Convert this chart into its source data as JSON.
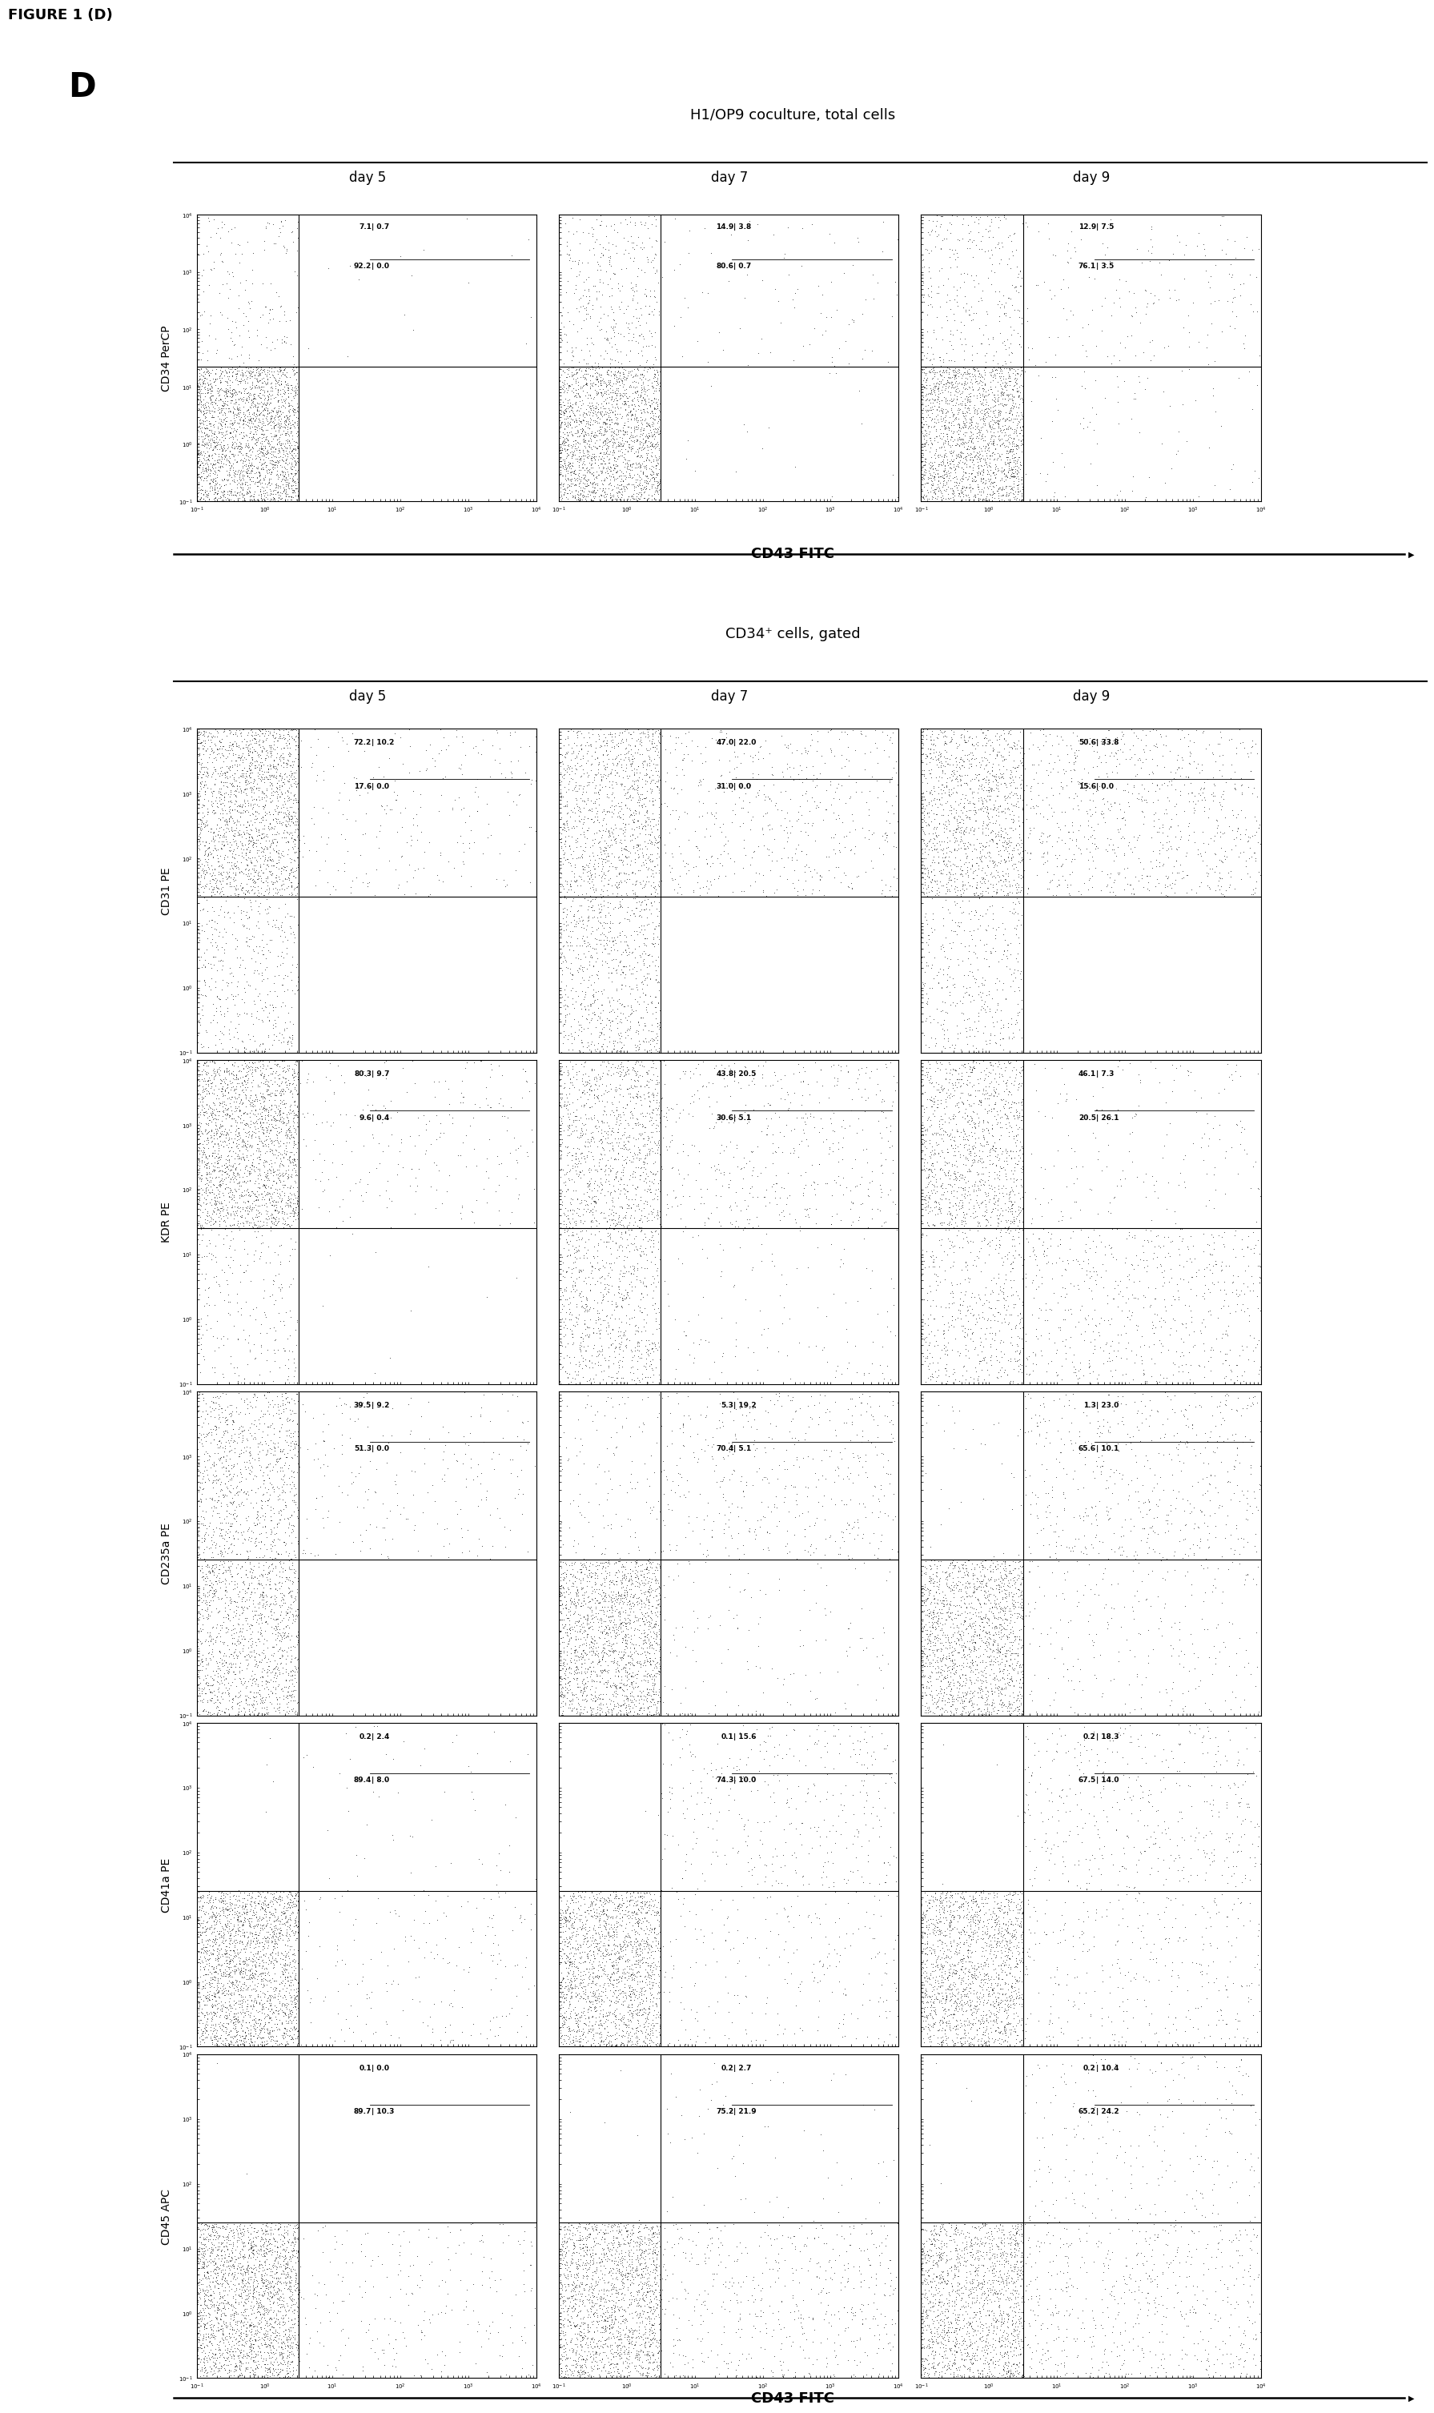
{
  "figure_label": "FIGURE 1 (D)",
  "panel_label": "D",
  "section1_title": "H1/OP9 coculture, total cells",
  "section2_title": "CD34⁺ cells, gated",
  "days": [
    "day 5",
    "day 7",
    "day 9"
  ],
  "section1_ylabel": "CD34 PerCP",
  "section1_xlabel": "CD43 FITC",
  "section2_xlabel": "CD43 FITC",
  "section2_ylabels": [
    "CD31 PE",
    "KDR PE",
    "CD235a PE",
    "CD41a PE",
    "CD45 APC"
  ],
  "section1_quadrants": [
    [
      "7.1",
      "0.7",
      "92.2",
      "0.0"
    ],
    [
      "14.9",
      "3.8",
      "80.6",
      "0.7"
    ],
    [
      "12.9",
      "7.5",
      "76.1",
      "3.5"
    ]
  ],
  "section2_quadrants": {
    "CD31 PE": [
      [
        "72.2",
        "10.2",
        "17.6",
        "0.0"
      ],
      [
        "47.0",
        "22.0",
        "31.0",
        "0.0"
      ],
      [
        "50.6",
        "33.8",
        "15.6",
        "0.0"
      ]
    ],
    "KDR PE": [
      [
        "80.3",
        "9.7",
        "9.6",
        "0.4"
      ],
      [
        "43.8",
        "20.5",
        "30.6",
        "5.1"
      ],
      [
        "46.1",
        "7.3",
        "20.5",
        "26.1"
      ]
    ],
    "CD235a PE": [
      [
        "39.5",
        "9.2",
        "51.3",
        "0.0"
      ],
      [
        "5.3",
        "19.2",
        "70.4",
        "5.1"
      ],
      [
        "1.3",
        "23.0",
        "65.6",
        "10.1"
      ]
    ],
    "CD41a PE": [
      [
        "0.2",
        "2.4",
        "89.4",
        "8.0"
      ],
      [
        "0.1",
        "15.6",
        "74.3",
        "10.0"
      ],
      [
        "0.2",
        "18.3",
        "67.5",
        "14.0"
      ]
    ],
    "CD45 APC": [
      [
        "0.1",
        "0.0",
        "89.7",
        "10.3"
      ],
      [
        "0.2",
        "2.7",
        "75.2",
        "21.9"
      ],
      [
        "0.2",
        "10.4",
        "65.2",
        "24.2"
      ]
    ]
  },
  "background_color": "#ffffff",
  "dot_color": "#000000",
  "text_color": "#000000"
}
